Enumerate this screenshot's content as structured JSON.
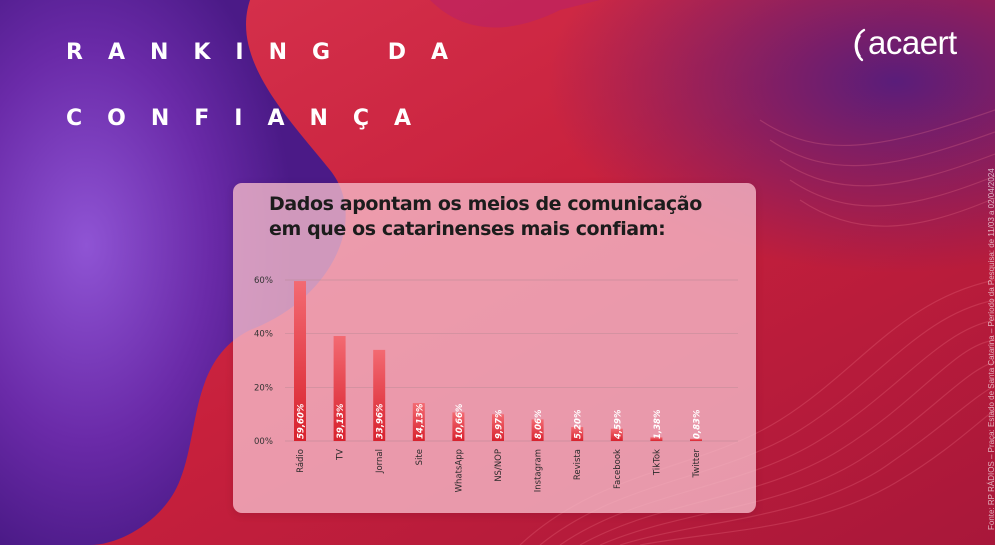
{
  "header": {
    "title_line_1": "RANKING DA",
    "title_line_2": "CONFIANÇA",
    "logo_text": "acaert",
    "side_note": "Fonte: RP RÁDIOS – Praça: Estado de Santa Catarina – Período da Pesquisa: de 11/03 a 02/04/2024"
  },
  "colors": {
    "bar": "#e52b38",
    "bar_top": "#f36a72",
    "background_red": "#c2243f",
    "background_purple": "#6a2aa8",
    "card": "#f6bcca"
  },
  "chart_data": {
    "type": "bar",
    "title": "Dados apontam os meios de comunicação em que os catarinenses mais confiam:",
    "title_lines": [
      "Dados apontam os meios de comunicação",
      "em que os catarinenses mais confiam:"
    ],
    "categories": [
      "Rádio",
      "TV",
      "Jornal",
      "Site",
      "WhatsApp",
      "NS/NOP",
      "Instagram",
      "Revista",
      "Facebook",
      "TikTok",
      "Twitter"
    ],
    "values": [
      59.6,
      39.13,
      33.96,
      14.13,
      10.66,
      9.97,
      8.06,
      5.2,
      4.59,
      1.38,
      0.83
    ],
    "value_labels": [
      "59,60%",
      "39,13%",
      "33,96%",
      "14,13%",
      "10,66%",
      "9,97%",
      "8,06%",
      "5,20%",
      "4,59%",
      "1,38%",
      "0,83%"
    ],
    "yticks": [
      0,
      20,
      40,
      60
    ],
    "ytick_labels": [
      "00%",
      "20%",
      "40%",
      "60%"
    ],
    "ylim": [
      0,
      60
    ],
    "xlabel": "",
    "ylabel": "",
    "grid": true
  }
}
